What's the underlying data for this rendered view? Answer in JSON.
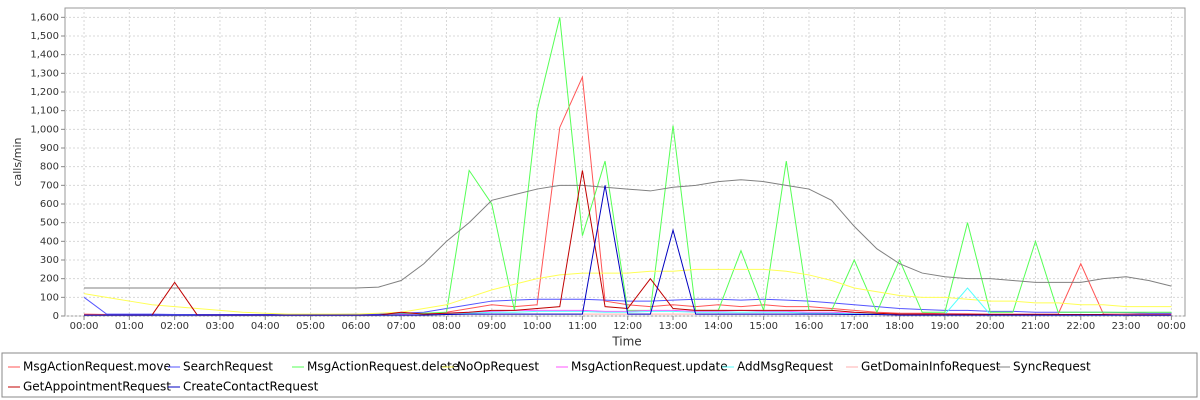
{
  "chart_data": {
    "type": "line",
    "y_label": "calls/min",
    "x_label": "Time",
    "x": [
      0,
      0.5,
      1,
      1.5,
      2,
      2.5,
      3,
      3.5,
      4,
      4.5,
      5,
      5.5,
      6,
      6.5,
      7,
      7.5,
      8,
      8.5,
      9,
      9.5,
      10,
      10.5,
      11,
      11.5,
      12,
      12.5,
      13,
      13.5,
      14,
      14.5,
      15,
      15.5,
      16,
      16.5,
      17,
      17.5,
      18,
      18.5,
      19,
      19.5,
      20,
      20.5,
      21,
      21.5,
      22,
      22.5,
      23,
      23.5,
      24
    ],
    "xlim": [
      -0.42,
      24.3
    ],
    "xticks": [
      {
        "value": 0,
        "label": "00:00"
      },
      {
        "value": 1,
        "label": "01:00"
      },
      {
        "value": 2,
        "label": "02:00"
      },
      {
        "value": 3,
        "label": "03:00"
      },
      {
        "value": 4,
        "label": "04:00"
      },
      {
        "value": 5,
        "label": "05:00"
      },
      {
        "value": 6,
        "label": "06:00"
      },
      {
        "value": 7,
        "label": "07:00"
      },
      {
        "value": 8,
        "label": "08:00"
      },
      {
        "value": 9,
        "label": "09:00"
      },
      {
        "value": 10,
        "label": "10:00"
      },
      {
        "value": 11,
        "label": "11:00"
      },
      {
        "value": 12,
        "label": "12:00"
      },
      {
        "value": 13,
        "label": "13:00"
      },
      {
        "value": 14,
        "label": "14:00"
      },
      {
        "value": 15,
        "label": "15:00"
      },
      {
        "value": 16,
        "label": "16:00"
      },
      {
        "value": 17,
        "label": "17:00"
      },
      {
        "value": 18,
        "label": "18:00"
      },
      {
        "value": 19,
        "label": "19:00"
      },
      {
        "value": 20,
        "label": "20:00"
      },
      {
        "value": 21,
        "label": "21:00"
      },
      {
        "value": 22,
        "label": "22:00"
      },
      {
        "value": 23,
        "label": "23:00"
      },
      {
        "value": 24,
        "label": "00:00"
      }
    ],
    "ylim": [
      0,
      1650
    ],
    "yticks": [
      0,
      100,
      200,
      300,
      400,
      500,
      600,
      700,
      800,
      900,
      {
        "value": 1000,
        "label": "1,000"
      },
      {
        "value": 1100,
        "label": "1,100"
      },
      {
        "value": 1200,
        "label": "1,200"
      },
      {
        "value": 1300,
        "label": "1,300"
      },
      {
        "value": 1400,
        "label": "1,400"
      },
      {
        "value": 1500,
        "label": "1,500"
      },
      {
        "value": 1600,
        "label": "1,600"
      }
    ],
    "grid": true,
    "series": [
      {
        "name": "MsgActionRequest.move",
        "color": "#ff5555",
        "values": [
          10,
          8,
          6,
          5,
          5,
          5,
          5,
          5,
          5,
          5,
          5,
          5,
          5,
          6,
          8,
          10,
          20,
          40,
          60,
          50,
          60,
          1010,
          1280,
          80,
          60,
          50,
          60,
          50,
          60,
          50,
          60,
          50,
          50,
          40,
          30,
          20,
          15,
          15,
          12,
          12,
          10,
          10,
          10,
          10,
          280,
          10,
          10,
          10,
          10
        ]
      },
      {
        "name": "SearchRequest",
        "color": "#5555ff",
        "values": [
          100,
          10,
          10,
          10,
          8,
          8,
          8,
          8,
          8,
          8,
          8,
          8,
          10,
          10,
          15,
          20,
          40,
          60,
          80,
          85,
          90,
          90,
          90,
          85,
          80,
          80,
          85,
          90,
          90,
          85,
          90,
          85,
          80,
          70,
          60,
          50,
          40,
          35,
          30,
          30,
          25,
          25,
          20,
          20,
          20,
          20,
          18,
          15,
          15
        ]
      },
      {
        "name": "MsgActionRequest.delete",
        "color": "#55ff55",
        "values": [
          5,
          5,
          5,
          5,
          5,
          5,
          5,
          5,
          5,
          5,
          5,
          5,
          5,
          5,
          10,
          15,
          20,
          780,
          600,
          30,
          1100,
          1600,
          430,
          830,
          30,
          30,
          1020,
          30,
          30,
          350,
          30,
          830,
          30,
          30,
          300,
          20,
          300,
          20,
          20,
          500,
          20,
          20,
          400,
          20,
          20,
          20,
          20,
          20,
          20
        ]
      },
      {
        "name": "NoOpRequest",
        "color": "#ffff55",
        "values": [
          120,
          100,
          80,
          60,
          50,
          40,
          30,
          20,
          15,
          10,
          10,
          10,
          10,
          15,
          20,
          40,
          60,
          100,
          140,
          170,
          200,
          220,
          230,
          230,
          230,
          240,
          240,
          250,
          250,
          250,
          250,
          240,
          220,
          190,
          150,
          130,
          110,
          100,
          100,
          90,
          80,
          80,
          70,
          70,
          60,
          60,
          50,
          50,
          50
        ]
      },
      {
        "name": "MsgActionRequest.update",
        "color": "#ff55ff",
        "values": [
          5,
          5,
          5,
          5,
          5,
          5,
          5,
          5,
          5,
          5,
          5,
          5,
          5,
          5,
          8,
          10,
          15,
          20,
          25,
          30,
          30,
          30,
          30,
          25,
          25,
          30,
          30,
          25,
          25,
          30,
          25,
          25,
          20,
          20,
          15,
          12,
          10,
          10,
          10,
          8,
          8,
          8,
          8,
          8,
          8,
          8,
          5,
          5,
          5
        ]
      },
      {
        "name": "AddMsgRequest",
        "color": "#55ffff",
        "values": [
          5,
          5,
          5,
          5,
          5,
          5,
          5,
          5,
          5,
          5,
          5,
          5,
          5,
          5,
          5,
          8,
          10,
          15,
          20,
          20,
          25,
          25,
          25,
          20,
          20,
          25,
          25,
          20,
          20,
          20,
          20,
          20,
          15,
          15,
          12,
          10,
          10,
          8,
          8,
          150,
          8,
          8,
          5,
          5,
          5,
          5,
          5,
          5,
          5
        ]
      },
      {
        "name": "GetDomainInfoRequest",
        "color": "#ffafaf",
        "values": [
          5,
          5,
          5,
          5,
          5,
          5,
          5,
          5,
          5,
          5,
          5,
          5,
          5,
          5,
          5,
          5,
          8,
          10,
          10,
          10,
          10,
          10,
          10,
          10,
          10,
          10,
          10,
          10,
          10,
          10,
          10,
          10,
          10,
          8,
          8,
          8,
          5,
          5,
          5,
          5,
          5,
          5,
          5,
          5,
          5,
          5,
          5,
          5,
          5
        ]
      },
      {
        "name": "SyncRequest",
        "color": "#808080",
        "values": [
          150,
          150,
          150,
          150,
          150,
          150,
          150,
          150,
          150,
          150,
          150,
          150,
          150,
          155,
          190,
          280,
          400,
          500,
          620,
          650,
          680,
          700,
          700,
          690,
          680,
          670,
          690,
          700,
          720,
          730,
          720,
          700,
          680,
          620,
          480,
          360,
          280,
          230,
          210,
          200,
          200,
          190,
          180,
          180,
          180,
          200,
          210,
          190,
          160
        ]
      },
      {
        "name": "GetAppointmentRequest",
        "color": "#c00000",
        "values": [
          5,
          5,
          5,
          5,
          180,
          5,
          5,
          5,
          5,
          5,
          5,
          5,
          5,
          5,
          20,
          10,
          15,
          20,
          30,
          30,
          40,
          50,
          780,
          50,
          40,
          200,
          40,
          30,
          30,
          30,
          30,
          30,
          30,
          30,
          20,
          15,
          10,
          10,
          10,
          8,
          8,
          8,
          8,
          8,
          8,
          8,
          5,
          5,
          5
        ]
      },
      {
        "name": "CreateContactRequest",
        "color": "#0000c0",
        "values": [
          5,
          5,
          5,
          5,
          5,
          5,
          5,
          5,
          5,
          5,
          5,
          5,
          5,
          5,
          5,
          5,
          8,
          10,
          10,
          10,
          10,
          10,
          10,
          700,
          10,
          10,
          460,
          10,
          10,
          10,
          10,
          10,
          10,
          10,
          8,
          8,
          5,
          5,
          5,
          5,
          5,
          5,
          5,
          5,
          5,
          5,
          5,
          5,
          5
        ]
      }
    ]
  }
}
